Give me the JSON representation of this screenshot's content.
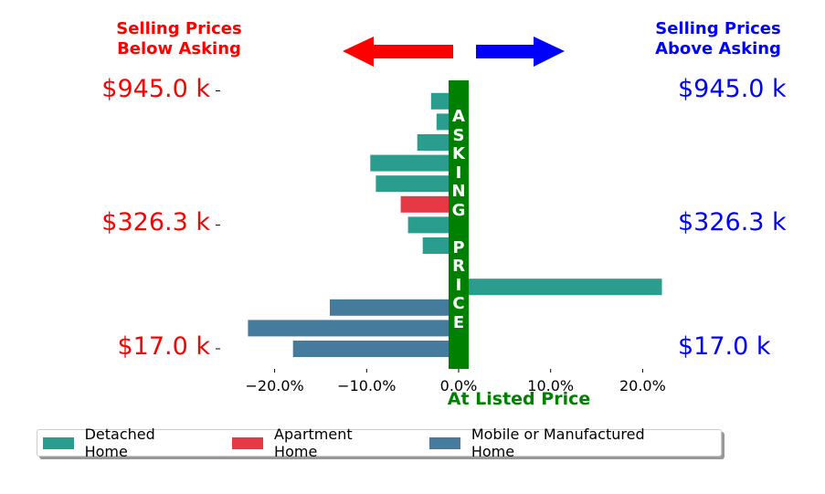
{
  "chart_data": {
    "type": "bar",
    "orientation": "horizontal",
    "header": {
      "left": "Selling Prices\nBelow Asking",
      "right": "Selling Prices\nAbove Asking",
      "left_color": "#ff0000",
      "right_color": "#0000ff"
    },
    "xlabel": "At Listed Price",
    "xlabel_color": "#008000",
    "pillar_text": "ASKING PRICE",
    "pillar_color": "#008000",
    "xlim": [
      -25,
      20
    ],
    "xticks": [
      {
        "value": -20,
        "label": "−20.0%"
      },
      {
        "value": -10,
        "label": "−10.0%"
      },
      {
        "value": 0,
        "label": "0.0%"
      },
      {
        "value": 10,
        "label": "10.0%"
      },
      {
        "value": 20,
        "label": "20.0%"
      }
    ],
    "price_labels": [
      {
        "label": "$945.0 k",
        "row": 0
      },
      {
        "label": "$326.3 k",
        "row": 6.5
      },
      {
        "label": "$17.0 k",
        "row": 12.5
      }
    ],
    "price_label_left_color": "#ff0000",
    "price_label_right_color": "#0000ff",
    "legend": [
      {
        "name": "Detached Home",
        "color": "#2a9d8f"
      },
      {
        "name": "Apartment Home",
        "color": "#e63946"
      },
      {
        "name": "Mobile or Manufactured Home",
        "color": "#457b9d"
      }
    ],
    "bars": [
      {
        "value": -3.0,
        "type": "Detached Home"
      },
      {
        "value": -2.4,
        "type": "Detached Home"
      },
      {
        "value": -4.5,
        "type": "Detached Home"
      },
      {
        "value": -9.6,
        "type": "Detached Home"
      },
      {
        "value": -9.0,
        "type": "Detached Home"
      },
      {
        "value": -6.3,
        "type": "Apartment Home"
      },
      {
        "value": -5.5,
        "type": "Detached Home"
      },
      {
        "value": -3.9,
        "type": "Detached Home"
      },
      {
        "value": 22.1,
        "type": "Detached Home"
      },
      {
        "value": -14.0,
        "type": "Mobile or Manufactured Home"
      },
      {
        "value": -22.9,
        "type": "Mobile or Manufactured Home"
      },
      {
        "value": -18.0,
        "type": "Mobile or Manufactured Home"
      }
    ],
    "bar_slots": [
      0.5,
      1.5,
      2.5,
      3.5,
      4.5,
      5.5,
      6.5,
      7.5,
      9.5,
      10.5,
      11.5,
      12.5
    ]
  }
}
